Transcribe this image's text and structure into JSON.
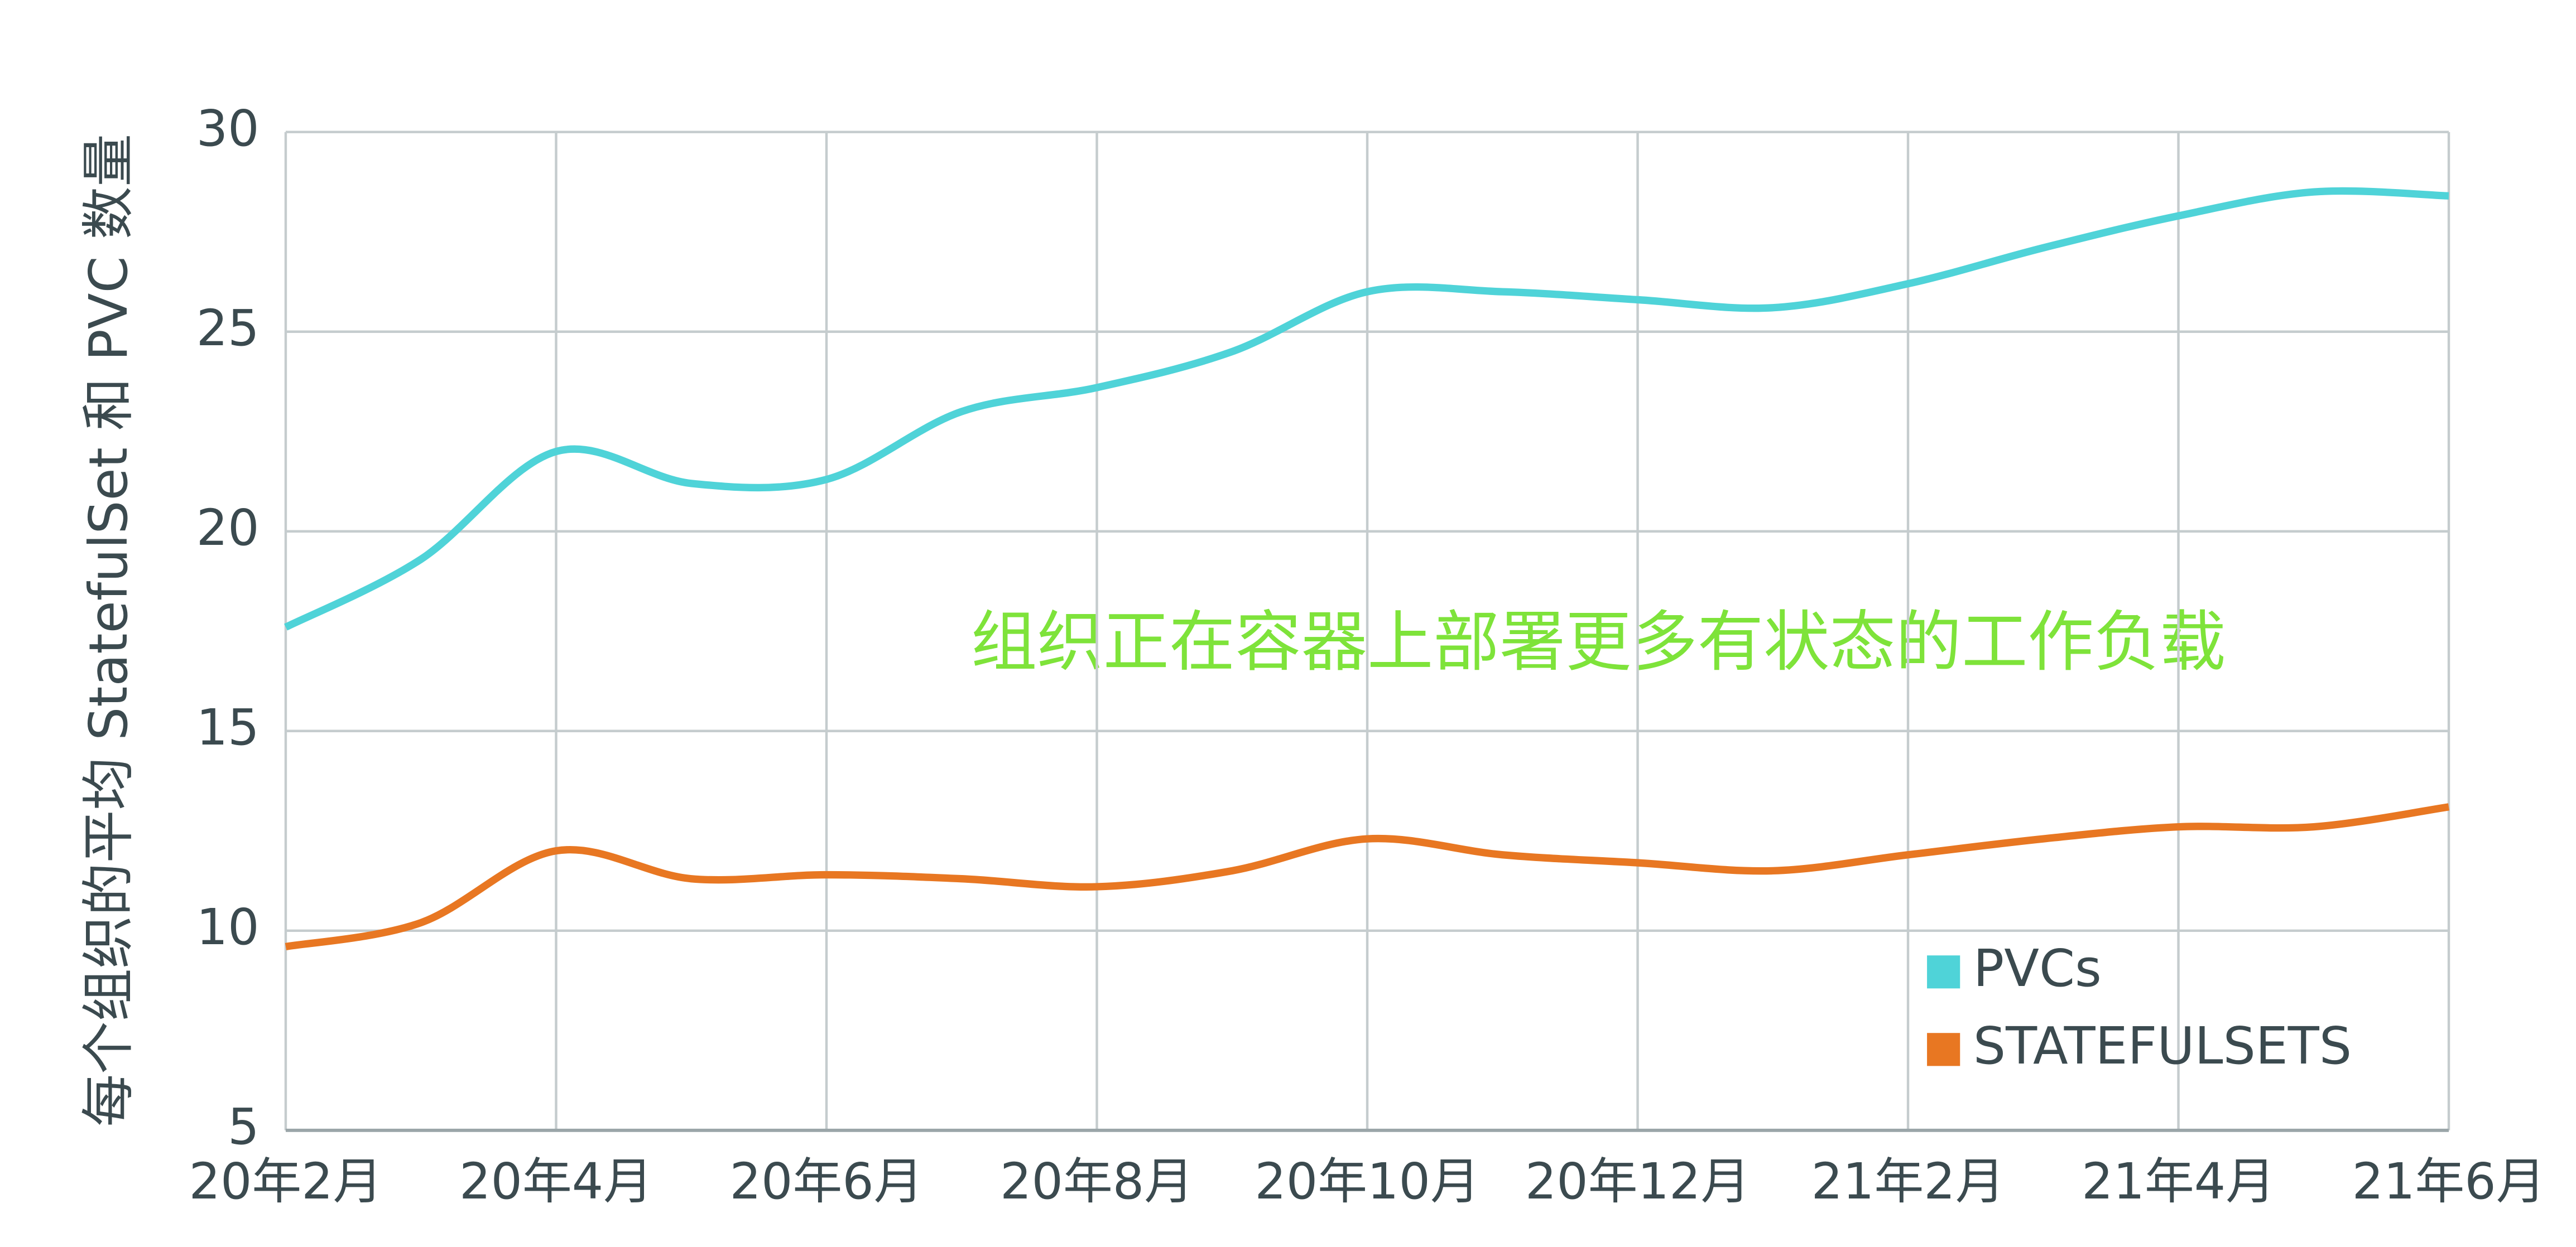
{
  "chart_data": {
    "type": "line",
    "y_label": "每个组织的平均 StatefulSet 和 PVC 数量",
    "annotation": "组织正在容器上部署更多有状态的工作负载",
    "categories": [
      "20年2月",
      null,
      "20年4月",
      null,
      "20年6月",
      null,
      "20年8月",
      null,
      "20年10月",
      null,
      "20年12月",
      null,
      "21年2月",
      null,
      "21年4月",
      null,
      "21年6月"
    ],
    "series": [
      {
        "name": "PVCs",
        "color": "#4fd3d8",
        "values": [
          17.6,
          19.3,
          22.0,
          21.2,
          21.3,
          23.0,
          23.6,
          24.5,
          26.0,
          26.0,
          25.8,
          25.6,
          26.2,
          27.1,
          27.9,
          28.5,
          28.4
        ]
      },
      {
        "name": "STATEFULSETS",
        "color": "#e87722",
        "values": [
          9.6,
          10.2,
          12.0,
          11.3,
          11.4,
          11.3,
          11.1,
          11.5,
          12.3,
          11.9,
          11.7,
          11.5,
          11.9,
          12.3,
          12.6,
          12.6,
          13.1
        ]
      }
    ],
    "ylim": [
      5,
      30
    ],
    "yticks": [
      5,
      10,
      15,
      20,
      25,
      30
    ],
    "grid": true,
    "annotation_color": "#7ee33a"
  }
}
